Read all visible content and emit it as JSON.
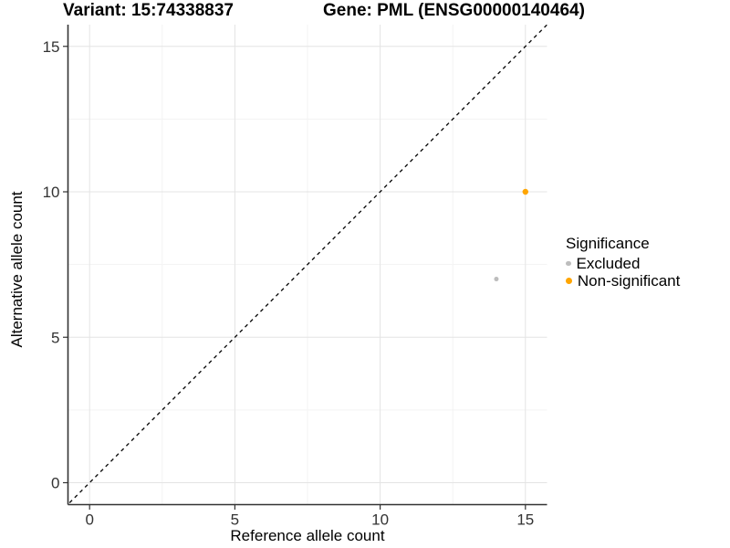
{
  "titles": {
    "variant": "Variant: 15:74338837",
    "gene": "Gene: PML (ENSG00000140464)"
  },
  "chart_data": {
    "type": "scatter",
    "xlabel": "Reference allele count",
    "ylabel": "Alternative allele count",
    "xlim": [
      0,
      15
    ],
    "ylim": [
      0,
      15
    ],
    "xticks": [
      0,
      5,
      10,
      15
    ],
    "yticks": [
      0,
      5,
      10,
      15
    ],
    "xticks_minor": [
      2.5,
      7.5,
      12.5
    ],
    "yticks_minor": [
      2.5,
      7.5,
      12.5
    ],
    "grid": true,
    "identity_line": {
      "slope": 1,
      "intercept": 0,
      "style": "dashed",
      "color": "#111111"
    },
    "legend": {
      "title": "Significance",
      "position": "right"
    },
    "series": [
      {
        "name": "Excluded",
        "color": "#BDBDBD",
        "marker_radius": 2.5,
        "points": [
          {
            "x": 14,
            "y": 7
          }
        ]
      },
      {
        "name": "Non-significant",
        "color": "#FFA500",
        "marker_radius": 3.2,
        "points": [
          {
            "x": 15,
            "y": 10
          }
        ]
      }
    ]
  },
  "colors": {
    "grid_major": "#E4E4E4",
    "grid_minor": "#F3F3F3",
    "axis": "#333333"
  }
}
